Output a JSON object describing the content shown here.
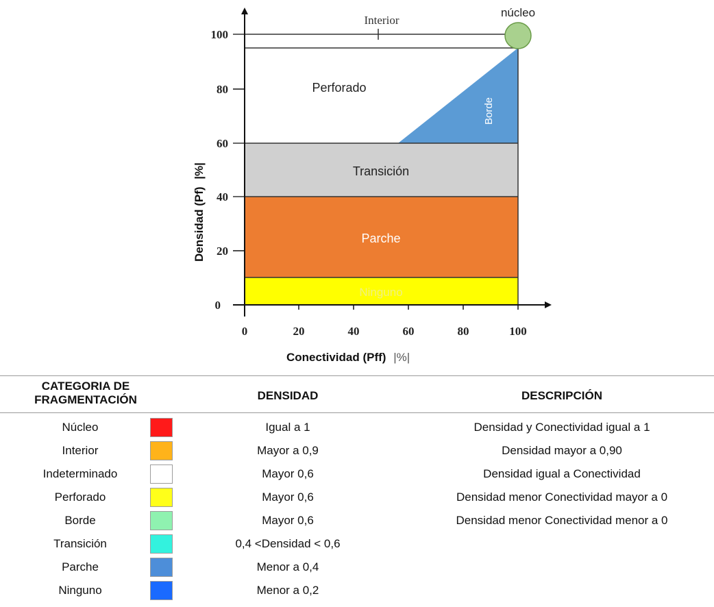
{
  "diagram": {
    "x_axis": {
      "label": "Conectividad (Pff)",
      "unit": "|%|",
      "ticks": [
        "0",
        "20",
        "40",
        "60",
        "80",
        "100"
      ]
    },
    "y_axis": {
      "label": "Densidad (Pf)",
      "unit": "|%|",
      "ticks": [
        "0",
        "20",
        "40",
        "60",
        "80",
        "100"
      ]
    },
    "regions": [
      {
        "key": "ninguno",
        "label": "Ninguno",
        "color": "#ffff00",
        "label_color": "#f0f080"
      },
      {
        "key": "parche",
        "label": "Parche",
        "color": "#ed7d31",
        "label_color": "#ffffff"
      },
      {
        "key": "transicion",
        "label": "Transición",
        "color": "#d0d0d0",
        "label_color": "#222222"
      },
      {
        "key": "borde",
        "label": "Borde",
        "color": "#5b9bd5",
        "label_color": "#ffffff"
      },
      {
        "key": "perforado",
        "label": "Perforado",
        "color": "#ffffff",
        "label_color": "#222222"
      },
      {
        "key": "interior",
        "label": "Interior",
        "color": "#ffffff",
        "label_color": "#333333"
      },
      {
        "key": "nucleo",
        "label": "núcleo",
        "color": "#a9d18e",
        "label_color": "#222222"
      }
    ]
  },
  "table": {
    "headers": {
      "category": [
        "CATEGORIA DE",
        "FRAGMENTACIÓN"
      ],
      "density": "DENSIDAD",
      "description": "DESCRIPCIÓN"
    },
    "rows": [
      {
        "category": "Núcleo",
        "color": "#ff1a1a",
        "density": "Igual a 1",
        "description": "Densidad y Conectividad igual a 1"
      },
      {
        "category": "Interior",
        "color": "#ffb31a",
        "density": "Mayor a 0,9",
        "description": "Densidad mayor a 0,90"
      },
      {
        "category": "Indeterminado",
        "color": "#ffffff",
        "density": "Mayor 0,6",
        "description": "Densidad igual a Conectividad"
      },
      {
        "category": "Perforado",
        "color": "#ffff1a",
        "density": "Mayor 0,6",
        "description": "Densidad menor Conectividad mayor a 0"
      },
      {
        "category": "Borde",
        "color": "#8ff2b0",
        "density": "Mayor 0,6",
        "description": "Densidad menor Conectividad menor a 0"
      },
      {
        "category": "Transición",
        "color": "#33f2de",
        "density": "0,4 <Densidad < 0,6",
        "description": ""
      },
      {
        "category": "Parche",
        "color": "#4d8ed9",
        "density": "Menor a 0,4",
        "description": ""
      },
      {
        "category": "Ninguno",
        "color": "#1a6aff",
        "density": "Menor a 0,2",
        "description": ""
      }
    ]
  }
}
